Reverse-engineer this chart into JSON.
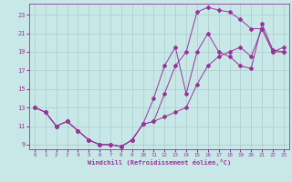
{
  "xlabel": "Windchill (Refroidissement éolien,°C)",
  "bg_color": "#c8e8e8",
  "line_color": "#993399",
  "grid_color": "#aacccc",
  "xlim": [
    -0.5,
    23.5
  ],
  "ylim": [
    8.5,
    24.2
  ],
  "xticks": [
    0,
    1,
    2,
    3,
    4,
    5,
    6,
    7,
    8,
    9,
    10,
    11,
    12,
    13,
    14,
    15,
    16,
    17,
    18,
    19,
    20,
    21,
    22,
    23
  ],
  "yticks": [
    9,
    11,
    13,
    15,
    17,
    19,
    21,
    23
  ],
  "line1_x": [
    0,
    1,
    2,
    3,
    4,
    5,
    6,
    7,
    8,
    9,
    10,
    11,
    12,
    13,
    14,
    15,
    16,
    17,
    18,
    19,
    20,
    21,
    22,
    23
  ],
  "line1_y": [
    13,
    12.5,
    11.0,
    11.5,
    10.5,
    9.5,
    9.0,
    9.0,
    8.8,
    9.5,
    11.2,
    11.5,
    14.5,
    17.5,
    19.0,
    23.3,
    23.8,
    23.5,
    23.3,
    22.5,
    21.5,
    21.5,
    19.0,
    19.5
  ],
  "line2_x": [
    0,
    1,
    2,
    3,
    4,
    5,
    6,
    7,
    8,
    9,
    10,
    11,
    12,
    13,
    14,
    15,
    16,
    17,
    18,
    19,
    20,
    21,
    22,
    23
  ],
  "line2_y": [
    13,
    12.5,
    11.0,
    11.5,
    10.5,
    9.5,
    9.0,
    9.0,
    8.8,
    9.5,
    11.2,
    14.0,
    17.5,
    19.5,
    14.5,
    19.0,
    21.0,
    19.0,
    18.5,
    17.5,
    17.2,
    22.0,
    19.2,
    19.0
  ],
  "line3_x": [
    0,
    1,
    2,
    3,
    4,
    5,
    6,
    7,
    8,
    9,
    10,
    11,
    12,
    13,
    14,
    15,
    16,
    17,
    18,
    19,
    20,
    21,
    22,
    23
  ],
  "line3_y": [
    13,
    12.5,
    11.0,
    11.5,
    10.5,
    9.5,
    9.0,
    9.0,
    8.8,
    9.5,
    11.2,
    11.5,
    12.0,
    12.5,
    13.0,
    15.5,
    17.5,
    18.5,
    19.0,
    19.5,
    18.5,
    21.5,
    19.0,
    19.0
  ]
}
